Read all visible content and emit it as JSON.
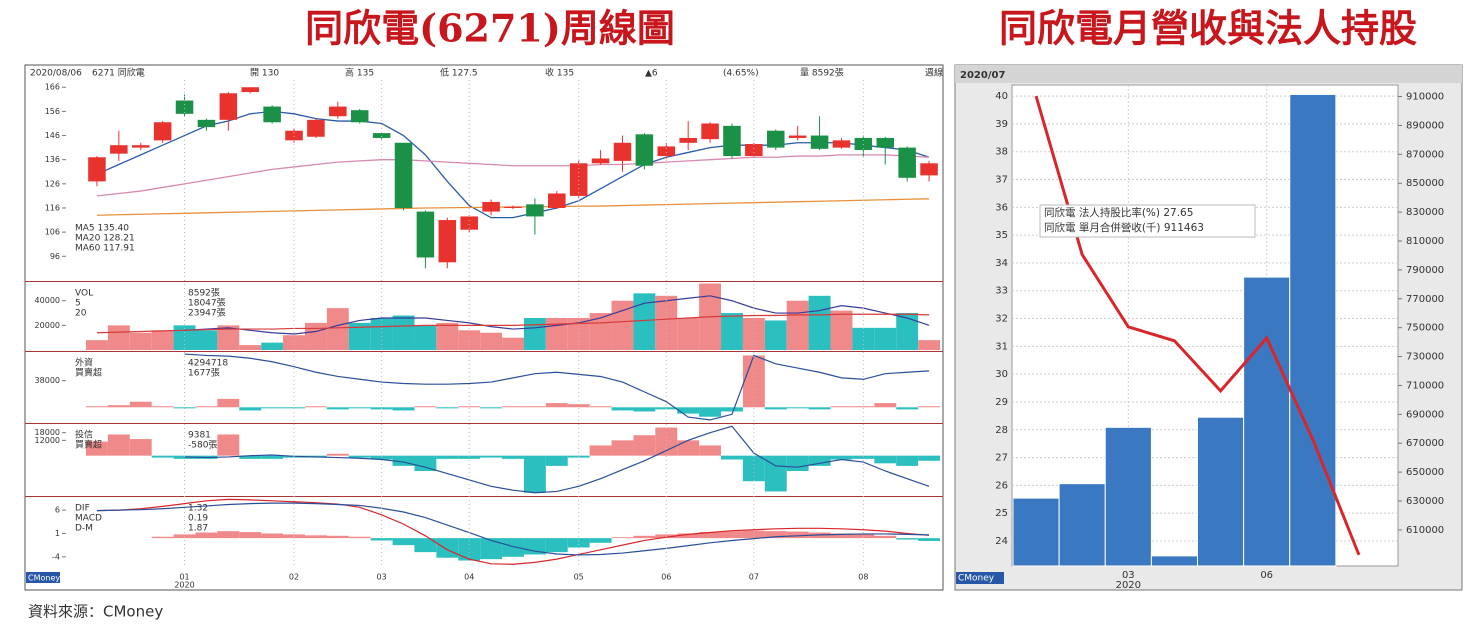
{
  "titles": {
    "left": "同欣電(6271)周線圖",
    "right": "同欣電月營收與法人持股"
  },
  "source": "資料來源：CMoney",
  "logo": "CMoney",
  "chart_data": [
    {
      "type": "candlestick",
      "header": [
        "2020/08/06",
        "6271 同欣電",
        "開 130",
        "高 135",
        "低 127.5",
        "收 135",
        "▲6",
        "(4.65%)",
        "量 8592張",
        "週線"
      ],
      "legend": [
        "MA5 135.40",
        "MA20 128.21",
        "MA60 117.91"
      ],
      "up_color": "#e8322d",
      "down_color": "#1a9146",
      "ylim": [
        87,
        169
      ],
      "yticks": [
        166,
        156,
        146,
        136,
        126,
        116,
        106,
        96
      ],
      "open": [
        127,
        138.5,
        141,
        144,
        160.5,
        152.5,
        152.5,
        164,
        158,
        144,
        145.5,
        154,
        156.5,
        147,
        143,
        114.5,
        93.5,
        107,
        114.5,
        116,
        117.5,
        116,
        121,
        134.5,
        135.5,
        146.5,
        137.5,
        143,
        144.5,
        150,
        137.5,
        148,
        145,
        146,
        141,
        145,
        145,
        141,
        129.5
      ],
      "high": [
        137.5,
        148,
        143,
        152,
        163,
        153,
        164,
        166,
        158.5,
        149,
        153,
        160,
        157,
        147,
        143,
        115,
        112,
        113,
        119.5,
        117,
        120,
        123,
        136,
        140,
        146,
        147,
        143,
        152,
        151.5,
        151,
        143,
        148.5,
        150,
        154,
        145,
        146,
        145.5,
        141.5,
        135.5
      ],
      "low": [
        125,
        135.5,
        140,
        143,
        154,
        148,
        148,
        163.5,
        151,
        143,
        145,
        153,
        151,
        144.5,
        115,
        91,
        91,
        106,
        113,
        115.5,
        105,
        115.5,
        120,
        134,
        131,
        132,
        136.5,
        140,
        143,
        136.5,
        137,
        140,
        144,
        140,
        140.5,
        137,
        134,
        127,
        127
      ],
      "close": [
        137,
        142,
        142,
        151.5,
        155,
        149.5,
        163.5,
        166,
        151.5,
        148,
        152.5,
        158,
        151.5,
        145,
        116,
        95.5,
        111,
        112.5,
        118.5,
        116.5,
        112.5,
        122,
        134.5,
        136.5,
        143,
        133.5,
        141.5,
        145,
        151,
        137.5,
        142.5,
        141,
        146,
        140.5,
        144,
        140,
        141,
        128.5,
        134.5
      ],
      "series": [
        {
          "name": "MA5",
          "color": "#2a5caa",
          "values": [
            130,
            134,
            138,
            142,
            146,
            150,
            152,
            155,
            156,
            155,
            153,
            152,
            152,
            151,
            146,
            138,
            127,
            117,
            112,
            112,
            114,
            116,
            119,
            124,
            129,
            134,
            137,
            139,
            141,
            142,
            142,
            142,
            143,
            143,
            143,
            142,
            141,
            140,
            137
          ]
        },
        {
          "name": "MA20",
          "color": "#d68ab0",
          "values": [
            121,
            122,
            123,
            124.5,
            126,
            127.5,
            129,
            130.5,
            132,
            133,
            134,
            135,
            135.5,
            136,
            136,
            135.5,
            135,
            134.5,
            134,
            133.5,
            133.5,
            133.5,
            133.5,
            134,
            134,
            134.5,
            135,
            135.5,
            136,
            136.5,
            137,
            137,
            137.5,
            137.5,
            138,
            138,
            138,
            137.5,
            137
          ]
        },
        {
          "name": "MA60",
          "color": "#e8913c",
          "values": [
            113,
            113.2,
            113.4,
            113.6,
            113.8,
            114,
            114.2,
            114.4,
            114.6,
            114.8,
            115,
            115.2,
            115.4,
            115.6,
            115.8,
            116,
            116.1,
            116.2,
            116.3,
            116.4,
            116.5,
            116.6,
            116.7,
            116.8,
            117,
            117.2,
            117.4,
            117.6,
            117.8,
            118,
            118.2,
            118.4,
            118.6,
            118.8,
            119,
            119.2,
            119.4,
            119.6,
            119.8
          ]
        }
      ]
    },
    {
      "type": "volume",
      "legend": [
        "VOL",
        "5",
        "20",
        "8592張",
        "18047張",
        "23947張"
      ],
      "up_color": "#f08a8a",
      "down_color": "#2bbfbf",
      "ylim": [
        0,
        54400
      ],
      "yticks": [
        40000,
        20000
      ],
      "values": [
        8000,
        20000,
        14000,
        16000,
        20000,
        16000,
        20000,
        4000,
        6000,
        12000,
        22000,
        34000,
        22000,
        26000,
        28000,
        20000,
        22000,
        16000,
        14000,
        10000,
        26000,
        26000,
        26000,
        30000,
        40000,
        46000,
        44000,
        26000,
        54000,
        30000,
        26000,
        24000,
        40000,
        44000,
        32000,
        18000,
        18000,
        30000,
        8000
      ],
      "series": [
        {
          "color": "#3a3a9a",
          "values": [
            null,
            null,
            null,
            null,
            16000,
            17000,
            18000,
            16000,
            14000,
            13000,
            15000,
            20000,
            24000,
            26000,
            26000,
            26000,
            24000,
            22000,
            19000,
            17000,
            18000,
            20000,
            22000,
            26000,
            32000,
            38000,
            40000,
            42000,
            44000,
            40000,
            34000,
            30000,
            30000,
            32000,
            36000,
            34000,
            30000,
            26000,
            20000
          ]
        },
        {
          "color": "#d83a3a",
          "values": [
            14000,
            14500,
            15000,
            15500,
            16000,
            16500,
            17000,
            17000,
            17000,
            17500,
            17500,
            18000,
            18500,
            19000,
            19500,
            20000,
            20000,
            20000,
            20000,
            20000,
            20500,
            21000,
            21500,
            22000,
            23000,
            24000,
            25000,
            26000,
            27000,
            27500,
            28000,
            28000,
            28500,
            28500,
            29000,
            29000,
            29000,
            29000,
            28500
          ]
        }
      ]
    },
    {
      "type": "bar",
      "legend": [
        "外資",
        "買賣超",
        "4294718",
        "1677張"
      ],
      "up_color": "#f08a8a",
      "down_color": "#2bbfbf",
      "ylim": [
        -21000,
        77500
      ],
      "yticks": [
        38000
      ],
      "values": [
        1500,
        3000,
        8000,
        1500,
        -1500,
        1500,
        12000,
        -4500,
        -1500,
        -1500,
        1500,
        -3000,
        -1500,
        -3000,
        -4500,
        1500,
        -1500,
        1500,
        -1500,
        1500,
        1500,
        6000,
        4500,
        1500,
        -4500,
        -6000,
        -3000,
        -9000,
        -13500,
        -6000,
        74000,
        -3000,
        -1500,
        -3000,
        1500,
        1500,
        6000,
        -3000,
        1500
      ],
      "series": [
        {
          "color": "#2a4f9a",
          "values": [
            null,
            null,
            null,
            null,
            76000,
            74000,
            73000,
            70000,
            65000,
            58000,
            50000,
            44000,
            40000,
            36000,
            34000,
            33000,
            33000,
            34000,
            36000,
            42000,
            48000,
            50000,
            47000,
            44000,
            36000,
            22000,
            8000,
            -14000,
            -18000,
            -10000,
            74000,
            62000,
            56000,
            50000,
            42000,
            40000,
            48000,
            50000,
            52000
          ]
        }
      ]
    },
    {
      "type": "bar",
      "legend": [
        "投信",
        "買賣超",
        "9381",
        "-580張"
      ],
      "up_color": "#f08a8a",
      "down_color": "#2bbfbf",
      "ylim": [
        -30000,
        24000
      ],
      "yticks": [
        18000,
        12000
      ],
      "values": [
        11000,
        16600,
        13000,
        -1500,
        -2500,
        -2500,
        16600,
        -2500,
        -2500,
        -1500,
        -1500,
        1500,
        -1500,
        -3000,
        -8000,
        -12000,
        -2500,
        -2500,
        -1500,
        -2500,
        -29000,
        -8000,
        -1500,
        8000,
        12000,
        16000,
        22000,
        12000,
        8000,
        -3000,
        -20000,
        -28000,
        -12000,
        -8000,
        -3000,
        -2500,
        -6000,
        -8000,
        -4000
      ],
      "series": [
        {
          "color": "#2a4f9a",
          "values": [
            null,
            null,
            null,
            null,
            -1000,
            -1500,
            -1000,
            0,
            500,
            -500,
            -1000,
            -1500,
            -2000,
            -3000,
            -5000,
            -9000,
            -14000,
            -19000,
            -24000,
            -27000,
            -29000,
            -28000,
            -24000,
            -18000,
            -11000,
            -4000,
            4000,
            12000,
            18000,
            23000,
            2000,
            -8000,
            -9000,
            -6000,
            -3000,
            -5000,
            -12000,
            -18000,
            -24000
          ]
        }
      ]
    },
    {
      "type": "bar",
      "legend": [
        "DIF",
        "MACD",
        "D-M",
        "1.32",
        "0.19",
        "1.87"
      ],
      "up_color": "#f08a8a",
      "down_color": "#2bbfbf",
      "ylim": [
        -6.4,
        8.6
      ],
      "yticks": [
        6,
        1,
        -4
      ],
      "categories": [
        null,
        null,
        null,
        null,
        "01",
        null,
        null,
        null,
        null,
        "02",
        null,
        null,
        null,
        "03",
        null,
        null,
        null,
        "04",
        null,
        null,
        null,
        null,
        "05",
        null,
        null,
        null,
        "06",
        null,
        null,
        null,
        "07",
        null,
        null,
        null,
        null,
        "08",
        null,
        null,
        null
      ],
      "x_label": "2020",
      "values": [
        0,
        0,
        0,
        0.3,
        0.8,
        1.2,
        1.5,
        1.3,
        1,
        0.8,
        0.6,
        0.5,
        0.3,
        -0.5,
        -1.5,
        -3,
        -4.2,
        -4.8,
        -4.5,
        -4,
        -3.5,
        -3,
        -2,
        -1,
        0.2,
        0.5,
        0.8,
        1,
        1.3,
        1.5,
        1.6,
        1.5,
        1.4,
        1.2,
        1,
        0.8,
        0.5,
        -0.3,
        -0.6
      ],
      "series": [
        {
          "name": "DIF",
          "color": "#d8262b",
          "values": [
            5.9,
            6,
            6.3,
            6.8,
            7.4,
            8,
            8.3,
            8.2,
            8,
            7.8,
            7.6,
            7.3,
            6.6,
            5,
            3,
            0.5,
            -2.5,
            -4.5,
            -5.5,
            -5.6,
            -5.2,
            -4.5,
            -3.5,
            -2.5,
            -1.5,
            -0.5,
            0.2,
            0.8,
            1.2,
            1.6,
            1.8,
            2,
            2.1,
            2.1,
            2,
            1.8,
            1.5,
            1,
            0.6
          ]
        },
        {
          "name": "MACD",
          "color": "#2a4f9a",
          "values": [
            5.9,
            6,
            6.1,
            6.3,
            6.6,
            6.9,
            7.2,
            7.4,
            7.5,
            7.5,
            7.4,
            7.2,
            7,
            6.4,
            5.6,
            4.4,
            2.8,
            1.2,
            -0.5,
            -1.8,
            -2.8,
            -3.4,
            -3.6,
            -3.5,
            -3.2,
            -2.7,
            -2.2,
            -1.6,
            -1,
            -0.5,
            -0.1,
            0.3,
            0.5,
            0.7,
            0.8,
            0.9,
            0.9,
            0.8,
            0.7
          ]
        }
      ]
    },
    {
      "type": "combo",
      "header": "2020/07",
      "categories": [
        null,
        null,
        "03",
        null,
        null,
        "06",
        null,
        null
      ],
      "x_label": "2020",
      "annotations": [
        "同欣電 法人持股比率(%)  27.65",
        "同欣電 單月合併營收(千)  911463"
      ],
      "ylim": [
        23.1,
        40.4
      ],
      "yticks": [
        24,
        25,
        26,
        27,
        28,
        29,
        30,
        31,
        32,
        33,
        34,
        35,
        36,
        37,
        38,
        39,
        40
      ],
      "y2lim": [
        585000,
        918000
      ],
      "y2ticks": [
        610000,
        630000,
        650000,
        670000,
        690000,
        710000,
        730000,
        750000,
        770000,
        790000,
        810000,
        830000,
        850000,
        870000,
        890000,
        910000
      ],
      "series": [
        {
          "name": "同欣電 單月合併營收(千)",
          "type": "bar",
          "axis": "y2",
          "color": "#3a78c2",
          "values": [
            632000,
            642000,
            681000,
            592000,
            688000,
            785000,
            911463,
            null
          ]
        },
        {
          "name": "同欣電 法人持股比率(%)",
          "type": "line",
          "axis": "y",
          "color": "#d8262b",
          "values": [
            40,
            34.3,
            31.7,
            31.2,
            29.4,
            31.3,
            27.65,
            23.5
          ]
        }
      ]
    }
  ]
}
